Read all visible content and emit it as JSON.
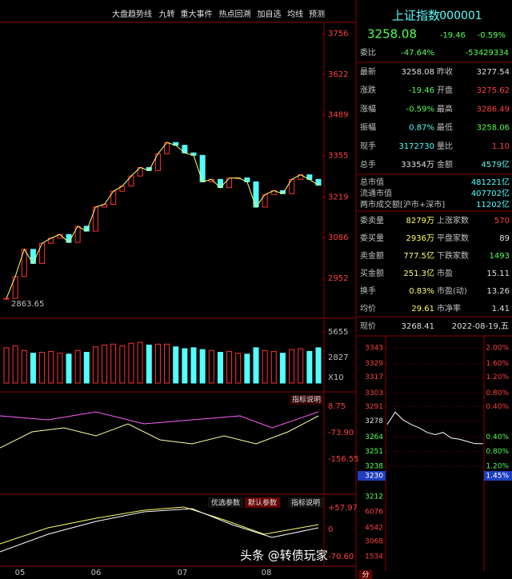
{
  "toolbar": [
    "大盘趋势线",
    "九转",
    "重大事件",
    "热点回溯",
    "加自选",
    "均线",
    "预测"
  ],
  "kline": {
    "price_ticks": [
      3756,
      3622,
      3489,
      3355,
      3219,
      3086,
      2952
    ],
    "low_label": "2863.65",
    "closes": [
      2886,
      2958,
      3047,
      3001,
      3067,
      3084,
      3096,
      3070,
      3123,
      3107,
      3186,
      3195,
      3238,
      3255,
      3288,
      3316,
      3306,
      3361,
      3398,
      3389,
      3364,
      3356,
      3269,
      3277,
      3250,
      3281,
      3282,
      3269,
      3186,
      3227,
      3240,
      3230,
      3277,
      3292,
      3277,
      3258
    ],
    "volume_ticks": [
      5655,
      2827
    ],
    "volume_unit": "X10",
    "volumes": [
      3900,
      4100,
      3600,
      3300,
      3400,
      3500,
      3300,
      3200,
      3600,
      3400,
      4000,
      4200,
      4300,
      4100,
      4400,
      4500,
      4200,
      4300,
      4300,
      4000,
      3800,
      3900,
      3700,
      3600,
      3400,
      3500,
      3300,
      3200,
      3900,
      3600,
      3500,
      3300,
      3700,
      3800,
      3500,
      3900
    ],
    "indicator_button": "指标说明",
    "indicator_ticks": [
      "8.75",
      "-73.90",
      "-156.55"
    ],
    "macd_buttons": [
      "优选参数",
      "默认参数",
      "指标说明"
    ],
    "macd_ticks": [
      "+57.97",
      "0",
      "-70.60"
    ],
    "months": [
      "05",
      "06",
      "07",
      "08"
    ]
  },
  "quote": {
    "name": "上证指数",
    "code": "000001",
    "price": "3258.08",
    "change": "-19.46",
    "pct": "-0.59%",
    "weibi": [
      "委比",
      "-47.64%",
      "-53429334"
    ],
    "rows": [
      [
        "最新",
        "3258.08",
        "昨收",
        "3277.54"
      ],
      [
        "涨跌",
        "-19.46",
        "开盘",
        "3275.62"
      ],
      [
        "涨幅",
        "-0.59%",
        "最高",
        "3286.49"
      ],
      [
        "振幅",
        "0.87%",
        "最低",
        "3258.06"
      ],
      [
        "现手",
        "3172730",
        "量比",
        "1.10"
      ],
      [
        "总手",
        "33354万",
        "金额",
        "4579亿"
      ]
    ],
    "wide_rows": [
      [
        "总市值",
        "481221亿"
      ],
      [
        "流通市值",
        "407702亿"
      ],
      [
        "两市成交额[沪市+深市]",
        "11202亿"
      ]
    ],
    "rows2": [
      [
        "委卖量",
        "8279万",
        "上涨家数",
        "570"
      ],
      [
        "委买量",
        "2936万",
        "平盘家数",
        "89"
      ],
      [
        "卖金额",
        "777.5亿",
        "下跌家数",
        "1493"
      ],
      [
        "买金额",
        "251.3亿",
        "市盈",
        "15.11"
      ],
      [
        "换手",
        "0.83%",
        "市盈(动)",
        "13.26"
      ],
      [
        "均价",
        "29.61",
        "市净率",
        "1.41"
      ]
    ]
  },
  "intraday": {
    "label": "现价",
    "price": "3268.41",
    "date": "2022-08-19,五",
    "left_ticks": [
      3343,
      3329,
      3317,
      3303,
      3291,
      3278,
      3264,
      3251,
      3238
    ],
    "current": "3230",
    "current_pct": "1.45%",
    "bottom_tick": "3212",
    "right_ticks": [
      "2.00%",
      "1.60%",
      "1.20%",
      "0.80%",
      "0.40%",
      "",
      "0.40%",
      "0.80%",
      "1.20%"
    ],
    "volume_ticks": [
      "6076",
      "4542",
      "3068",
      "1534"
    ],
    "values": [
      3275,
      3286,
      3279,
      3275,
      3272,
      3268,
      3266,
      3268,
      3263,
      3262,
      3260,
      3258,
      3258
    ],
    "bottom": "分"
  },
  "watermark": "头条 @转债玩家"
}
